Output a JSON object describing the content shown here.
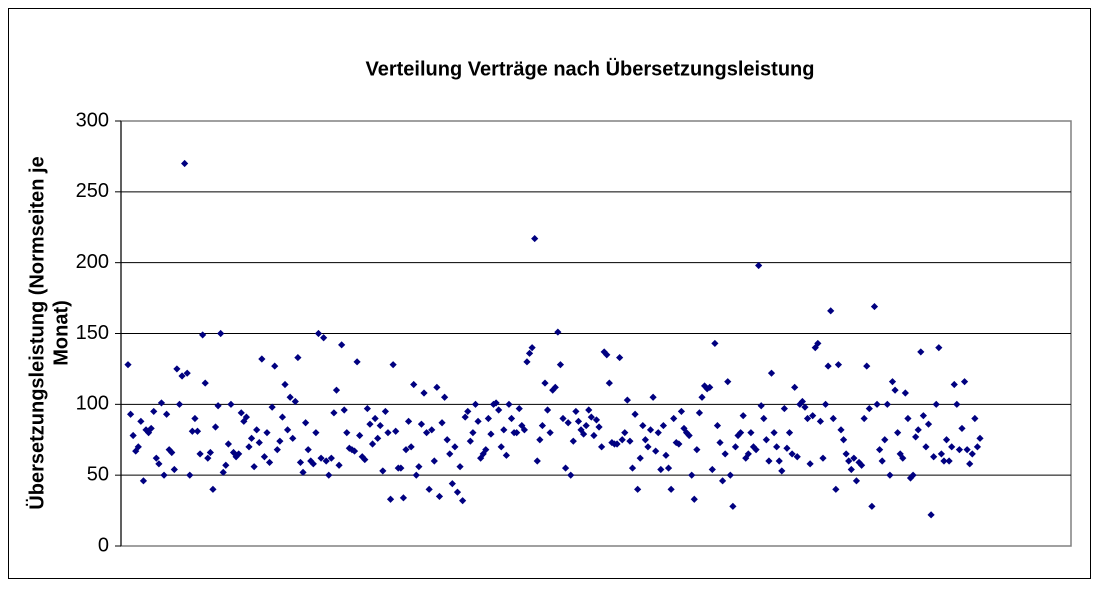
{
  "chart_data": {
    "type": "scatter",
    "title": "Verteilung Verträge nach Übersetzungsleistung",
    "ylabel": "Übersetzungsleistung (Normseiten je Monat)",
    "color": "#000080",
    "ylim": [
      0,
      300
    ],
    "yticks": [
      0,
      50,
      100,
      150,
      200,
      250,
      300
    ],
    "grid": true,
    "values": [
      128,
      93,
      78,
      67,
      70,
      88,
      46,
      82,
      80,
      83,
      95,
      62,
      58,
      101,
      50,
      93,
      68,
      66,
      54,
      125,
      100,
      120,
      270,
      122,
      50,
      81,
      90,
      81,
      65,
      149,
      115,
      62,
      66,
      40,
      84,
      99,
      150,
      52,
      57,
      72,
      100,
      66,
      63,
      65,
      94,
      88,
      91,
      70,
      76,
      56,
      82,
      73,
      132,
      63,
      80,
      59,
      98,
      127,
      68,
      74,
      91,
      114,
      82,
      105,
      76,
      102,
      133,
      59,
      52,
      87,
      68,
      60,
      58,
      80,
      150,
      62,
      147,
      60,
      50,
      62,
      94,
      110,
      57,
      142,
      96,
      80,
      69,
      68,
      67,
      130,
      78,
      63,
      61,
      97,
      86,
      72,
      90,
      76,
      85,
      53,
      95,
      80,
      33,
      128,
      81,
      55,
      55,
      34,
      68,
      88,
      70,
      114,
      50,
      56,
      86,
      108,
      80,
      40,
      82,
      60,
      112,
      35,
      87,
      105,
      75,
      65,
      44,
      70,
      38,
      56,
      32,
      91,
      95,
      74,
      80,
      100,
      88,
      62,
      65,
      68,
      90,
      79,
      100,
      101,
      96,
      70,
      82,
      64,
      100,
      90,
      80,
      80,
      97,
      85,
      82,
      130,
      136,
      140,
      217,
      60,
      75,
      85,
      115,
      96,
      80,
      110,
      112,
      151,
      128,
      90,
      55,
      87,
      50,
      74,
      95,
      88,
      82,
      79,
      85,
      96,
      91,
      78,
      89,
      84,
      70,
      137,
      135,
      115,
      73,
      72,
      72,
      133,
      75,
      80,
      103,
      74,
      55,
      93,
      40,
      62,
      85,
      75,
      70,
      82,
      105,
      67,
      80,
      54,
      85,
      64,
      55,
      40,
      90,
      73,
      72,
      95,
      83,
      80,
      78,
      50,
      33,
      68,
      94,
      105,
      113,
      111,
      112,
      54,
      143,
      85,
      73,
      46,
      65,
      116,
      50,
      28,
      70,
      78,
      80,
      92,
      62,
      65,
      80,
      70,
      68,
      198,
      99,
      90,
      75,
      60,
      122,
      80,
      70,
      60,
      53,
      97,
      69,
      80,
      65,
      112,
      63,
      100,
      102,
      98,
      90,
      58,
      92,
      140,
      143,
      88,
      62,
      100,
      127,
      166,
      90,
      40,
      128,
      82,
      75,
      65,
      60,
      54,
      62,
      46,
      59,
      57,
      90,
      127,
      97,
      28,
      169,
      100,
      68,
      60,
      75,
      100,
      50,
      116,
      110,
      80,
      65,
      62,
      108,
      90,
      48,
      50,
      77,
      82,
      137,
      92,
      70,
      86,
      22,
      63,
      100,
      140,
      65,
      60,
      75,
      60,
      70,
      114,
      100,
      68,
      83,
      116,
      68,
      58,
      65,
      90,
      70,
      76
    ]
  }
}
